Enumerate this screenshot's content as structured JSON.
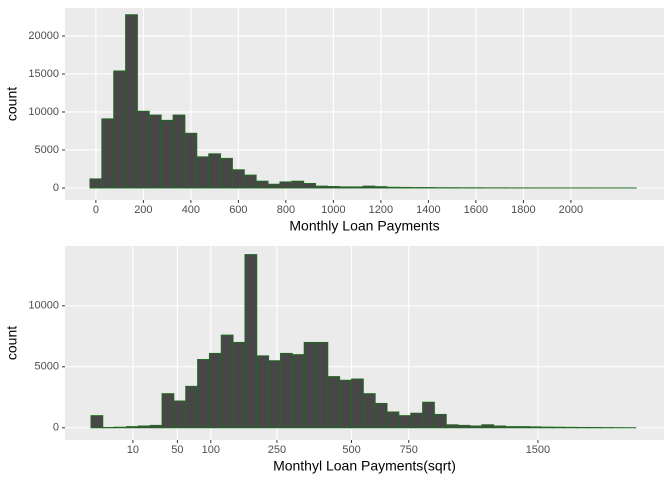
{
  "chart_data": [
    {
      "type": "histogram",
      "x_label": "Monthly Loan Payments",
      "y_label": "count",
      "bins": [
        -25,
        25,
        75,
        125,
        175,
        225,
        275,
        325,
        375,
        425,
        475,
        525,
        575,
        625,
        675,
        725,
        775,
        825,
        875,
        925,
        975,
        1025,
        1075,
        1125,
        1175,
        1225,
        1275,
        1325,
        1375,
        1425,
        1475,
        1525,
        1575,
        1625,
        1675,
        1725,
        1775,
        1825,
        1875,
        1925,
        1975,
        2025,
        2075,
        2125,
        2175,
        2225,
        2275
      ],
      "values": [
        1200,
        9100,
        15400,
        22800,
        10100,
        9600,
        8900,
        9600,
        7200,
        4100,
        4500,
        3900,
        2400,
        1700,
        900,
        500,
        800,
        900,
        600,
        250,
        200,
        150,
        150,
        250,
        180,
        100,
        80,
        60,
        60,
        40,
        40,
        30,
        30,
        20,
        20,
        15,
        15,
        10,
        10,
        10,
        8,
        8,
        5,
        5,
        5,
        5
      ],
      "color": "#474747",
      "edge_color": "#1f6b1f",
      "xlim": [
        -130,
        2392
      ],
      "xticks": [
        0,
        200,
        400,
        600,
        800,
        1000,
        1200,
        1400,
        1600,
        1800,
        2000
      ],
      "ylim": [
        -1580,
        23680
      ],
      "yticks": [
        0,
        5000,
        10000,
        15000,
        20000
      ],
      "grid": true
    },
    {
      "type": "histogram",
      "x_label": "Monthyl Loan Payments(sqrt)",
      "y_label": "count",
      "x_scale": "sqrt",
      "bins": [
        -0.52,
        0.52,
        1.56,
        2.6,
        3.64,
        4.68,
        5.72,
        6.76,
        7.8,
        8.84,
        9.88,
        10.92,
        11.96,
        13,
        14.04,
        15.08,
        16.12,
        17.16,
        18.2,
        19.24,
        20.28,
        21.32,
        22.36,
        23.4,
        24.44,
        25.48,
        26.52,
        27.56,
        28.6,
        29.64,
        30.68,
        31.72,
        32.76,
        33.8,
        34.84,
        35.88,
        36.92,
        37.96,
        39,
        40.04,
        41.08,
        42.12,
        43.16,
        44.2,
        45.24,
        46.28,
        47.32
      ],
      "values": [
        1000,
        30,
        50,
        100,
        150,
        200,
        2800,
        2200,
        3400,
        5600,
        6100,
        7600,
        7000,
        14200,
        5900,
        5500,
        6100,
        6000,
        7000,
        7000,
        4200,
        3900,
        4000,
        2800,
        2000,
        1300,
        1000,
        1200,
        2100,
        1100,
        250,
        200,
        150,
        250,
        150,
        100,
        100,
        80,
        60,
        50,
        40,
        30,
        30,
        20,
        15,
        10
      ],
      "color": "#474747",
      "edge_color": "#1f6b1f",
      "xlim": [
        -2.8,
        49.8
      ],
      "xticks": [
        {
          "value": 3.1623,
          "label": "10"
        },
        {
          "value": 7.0711,
          "label": "50"
        },
        {
          "value": 10,
          "label": "100"
        },
        {
          "value": 15.8114,
          "label": "250"
        },
        {
          "value": 22.3607,
          "label": "500"
        },
        {
          "value": 27.3861,
          "label": "750"
        },
        {
          "value": 38.7298,
          "label": "1500"
        }
      ],
      "ylim": [
        -1000,
        14900
      ],
      "yticks": [
        0,
        5000,
        10000
      ],
      "grid": true
    }
  ]
}
